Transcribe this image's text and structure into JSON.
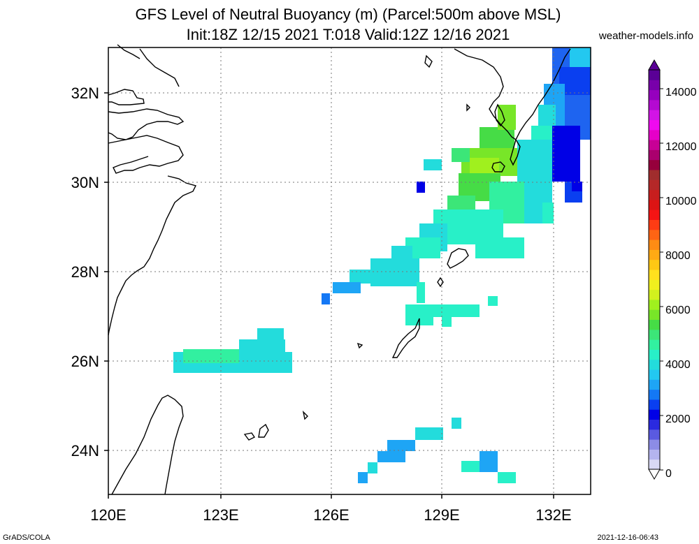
{
  "header": {
    "title_line1": "GFS Level of Neutral Buoyancy (m) (Parcel:500m above MSL)",
    "title_line2": "Init:18Z 12/15 2021 T:018 Valid:12Z 12/16 2021",
    "site": "weather-models.info"
  },
  "map": {
    "lon_labels": [
      "120E",
      "123E",
      "126E",
      "129E",
      "132E"
    ],
    "lat_labels": [
      "32N",
      "30N",
      "28N",
      "26N",
      "24N"
    ]
  },
  "colorbar": {
    "labels": [
      "14000",
      "12000",
      "10000",
      "8000",
      "6000",
      "4000",
      "2000",
      "0"
    ],
    "colors": [
      "#d9d9f5",
      "#b4b4ee",
      "#8c8ce6",
      "#5a5ae0",
      "#2a2ae0",
      "#0000e6",
      "#0a3ff0",
      "#1478f5",
      "#1ea5f5",
      "#23c8f0",
      "#23dcdc",
      "#28f0c8",
      "#32f0a0",
      "#3ce678",
      "#46dc46",
      "#78e628",
      "#a0f01e",
      "#d2f01e",
      "#f0f01e",
      "#ffe11e",
      "#ffc814",
      "#ffaa14",
      "#ff8c14",
      "#ff6414",
      "#ff3c14",
      "#f51414",
      "#dc1414",
      "#c81e1e",
      "#b42828",
      "#a02d2d",
      "#96003c",
      "#aa006e",
      "#c80096",
      "#e600c8",
      "#f00af0",
      "#d214e6",
      "#b40ad2",
      "#9600be",
      "#7800aa",
      "#5a0096"
    ]
  },
  "footer": {
    "left": "GrADS/COLA",
    "right": "2021-12-16-06:43"
  }
}
